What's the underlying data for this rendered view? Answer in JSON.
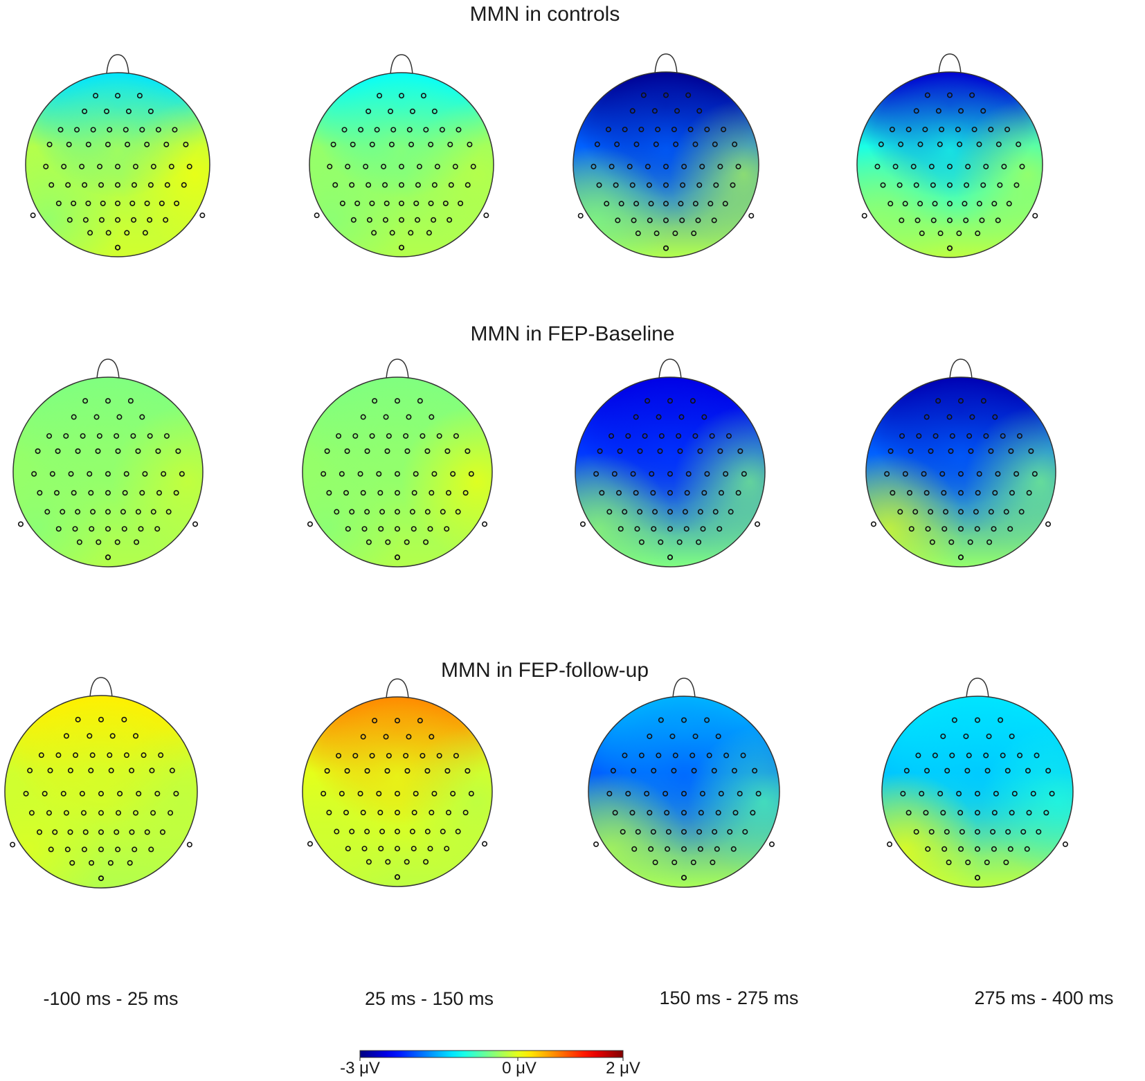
{
  "figure": {
    "rows": [
      {
        "title": "MMN in controls",
        "maps": [
          {
            "window": "-100 ms - 25 ms",
            "pattern": "neutral-green",
            "front": 0.35,
            "center": 0.55,
            "back": 0.58,
            "right": 0.62,
            "left": 0.5
          },
          {
            "window": "25 ms - 150 ms",
            "pattern": "neutral-green",
            "front": 0.38,
            "center": 0.52,
            "back": 0.55,
            "right": 0.56,
            "left": 0.5
          },
          {
            "window": "150 ms - 275 ms",
            "pattern": "frontal-negativity-strong",
            "front": 0.02,
            "center": 0.22,
            "back": 0.55,
            "right": 0.55,
            "left": 0.5
          },
          {
            "window": "275 ms - 400 ms",
            "pattern": "frontal-negativity",
            "front": 0.08,
            "center": 0.4,
            "back": 0.56,
            "right": 0.55,
            "left": 0.52
          }
        ]
      },
      {
        "title": "MMN in FEP-Baseline",
        "maps": [
          {
            "window": "-100 ms - 25 ms",
            "pattern": "neutral-green",
            "front": 0.5,
            "center": 0.52,
            "back": 0.55,
            "right": 0.58,
            "left": 0.5
          },
          {
            "window": "25 ms - 150 ms",
            "pattern": "neutral-green",
            "front": 0.5,
            "center": 0.52,
            "back": 0.55,
            "right": 0.62,
            "left": 0.5
          },
          {
            "window": "150 ms - 275 ms",
            "pattern": "frontal-negativity",
            "front": 0.1,
            "center": 0.18,
            "back": 0.5,
            "right": 0.5,
            "left": 0.52
          },
          {
            "window": "275 ms - 400 ms",
            "pattern": "frontal-negativity",
            "front": 0.05,
            "center": 0.22,
            "back": 0.52,
            "right": 0.5,
            "left": 0.6
          }
        ]
      },
      {
        "title": "MMN in FEP-follow-up",
        "maps": [
          {
            "window": "-100 ms - 25 ms",
            "pattern": "slight-positive",
            "front": 0.64,
            "center": 0.58,
            "back": 0.55,
            "right": 0.56,
            "left": 0.6
          },
          {
            "window": "25 ms - 150 ms",
            "pattern": "frontal-positivity",
            "front": 0.74,
            "center": 0.6,
            "back": 0.56,
            "right": 0.55,
            "left": 0.58
          },
          {
            "window": "150 ms - 275 ms",
            "pattern": "frontal-negativity",
            "front": 0.3,
            "center": 0.22,
            "back": 0.54,
            "right": 0.45,
            "left": 0.55
          },
          {
            "window": "275 ms - 400 ms",
            "pattern": "frontal-negativity-mild",
            "front": 0.35,
            "center": 0.32,
            "back": 0.56,
            "right": 0.4,
            "left": 0.62
          }
        ]
      }
    ],
    "window_labels": [
      "-100 ms - 25 ms",
      "25 ms - 150 ms",
      "150 ms - 275 ms",
      "275 ms - 400 ms"
    ],
    "colorbar": {
      "min_label": "-3 μV",
      "mid_label": "0 μV",
      "max_label": "2 μV",
      "min": -3,
      "mid": 0,
      "max": 2,
      "colormap": "jet"
    }
  }
}
